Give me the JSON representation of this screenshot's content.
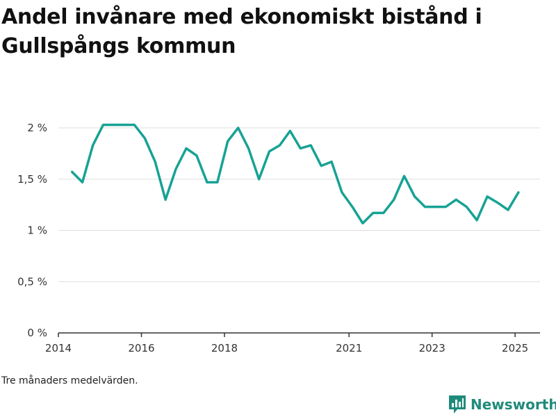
{
  "title": "Andel invånare med ekonomiskt bistånd i Gullspångs kommun",
  "note": "Tre månaders medelvärden.",
  "brand": {
    "name": "Newsworthy",
    "color": "#1f8b7b"
  },
  "chart_data": {
    "type": "line",
    "title": "Andel invånare med ekonomiskt bistånd i Gullspångs kommun",
    "xlabel": "",
    "ylabel": "",
    "ylim": [
      0,
      2.2
    ],
    "yticks": [
      0,
      0.5,
      1,
      1.5,
      2
    ],
    "ytick_labels": [
      "0 %",
      "0,5 %",
      "1 %",
      "1,5 %",
      "2 %"
    ],
    "xlim": [
      2014.0,
      2025.6
    ],
    "xticks": [
      2014,
      2016,
      2018,
      2021,
      2023,
      2025
    ],
    "xtick_labels": [
      "2014",
      "2016",
      "2018",
      "2021",
      "2023",
      "2025"
    ],
    "grid": true,
    "line_color": "#17a294",
    "series": [
      {
        "x": [
          2014.33,
          2014.58,
          2014.83,
          2015.08,
          2015.33,
          2015.58,
          2015.83,
          2016.08,
          2016.33,
          2016.58,
          2016.83,
          2017.08,
          2017.33,
          2017.58,
          2017.83,
          2018.08,
          2018.33,
          2018.58,
          2018.83,
          2019.08,
          2019.33,
          2019.58,
          2019.83,
          2020.08,
          2020.33,
          2020.58,
          2020.83,
          2021.08,
          2021.33,
          2021.58,
          2021.83,
          2022.08,
          2022.33,
          2022.58,
          2022.83,
          2023.08,
          2023.33,
          2023.58,
          2023.83,
          2024.08,
          2024.33,
          2024.58,
          2024.83,
          2025.08
        ],
        "values": [
          1.57,
          1.47,
          1.83,
          2.03,
          2.03,
          2.03,
          2.03,
          1.9,
          1.67,
          1.3,
          1.6,
          1.8,
          1.73,
          1.47,
          1.47,
          1.87,
          2.0,
          1.8,
          1.5,
          1.77,
          1.83,
          1.97,
          1.8,
          1.83,
          1.63,
          1.67,
          1.37,
          1.23,
          1.07,
          1.17,
          1.17,
          1.3,
          1.53,
          1.33,
          1.23,
          1.23,
          1.23,
          1.3,
          1.23,
          1.1,
          1.33,
          1.27,
          1.2,
          1.37
        ]
      }
    ]
  }
}
